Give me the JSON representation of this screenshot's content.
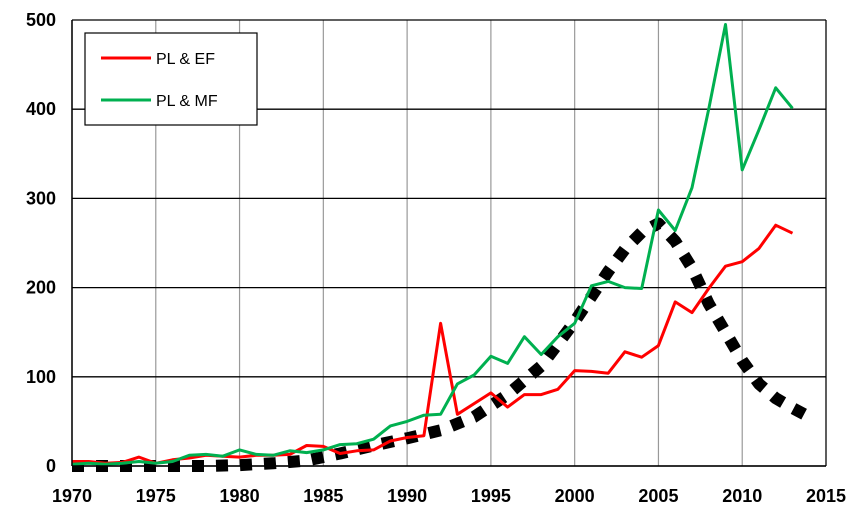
{
  "chart_data": {
    "type": "line",
    "xlim": [
      1970,
      2015
    ],
    "ylim": [
      0,
      500
    ],
    "x_ticks": [
      1970,
      1975,
      1980,
      1985,
      1990,
      1995,
      2000,
      2005,
      2010,
      2015
    ],
    "y_ticks": [
      0,
      100,
      200,
      300,
      400,
      500
    ],
    "grid": true,
    "legend_position": "top-left",
    "series": [
      {
        "name": "PL & EF",
        "color": "#ff0000",
        "style": "solid",
        "x": [
          1970,
          1971,
          1972,
          1973,
          1974,
          1975,
          1976,
          1977,
          1978,
          1979,
          1980,
          1981,
          1982,
          1983,
          1984,
          1985,
          1986,
          1987,
          1988,
          1989,
          1990,
          1991,
          1992,
          1993,
          1994,
          1995,
          1996,
          1997,
          1998,
          1999,
          2000,
          2001,
          2002,
          2003,
          2004,
          2005,
          2006,
          2007,
          2008,
          2009,
          2010,
          2011,
          2012,
          2013
        ],
        "y": [
          5,
          5,
          3,
          4,
          10,
          3,
          7,
          9,
          12,
          11,
          10,
          12,
          12,
          13,
          23,
          22,
          14,
          17,
          18,
          28,
          32,
          34,
          160,
          58,
          70,
          82,
          66,
          80,
          80,
          86,
          107,
          106,
          104,
          128,
          122,
          135,
          184,
          172,
          199,
          224,
          229,
          244,
          270,
          261
        ]
      },
      {
        "name": "PL & MF",
        "color": "#00b050",
        "style": "solid",
        "x": [
          1970,
          1971,
          1972,
          1973,
          1974,
          1975,
          1976,
          1977,
          1978,
          1979,
          1980,
          1981,
          1982,
          1983,
          1984,
          1985,
          1986,
          1987,
          1988,
          1989,
          1990,
          1991,
          1992,
          1993,
          1994,
          1995,
          1996,
          1997,
          1998,
          1999,
          2000,
          2001,
          2002,
          2003,
          2004,
          2005,
          2006,
          2007,
          2008,
          2009,
          2010,
          2011,
          2012,
          2013
        ],
        "y": [
          2,
          3,
          2,
          3,
          5,
          3,
          5,
          12,
          13,
          11,
          18,
          13,
          12,
          17,
          15,
          18,
          24,
          25,
          30,
          45,
          50,
          57,
          58,
          92,
          102,
          123,
          115,
          145,
          125,
          145,
          160,
          202,
          207,
          200,
          199,
          287,
          264,
          312,
          400,
          495,
          332,
          377,
          424,
          401
        ]
      },
      {
        "name": "",
        "color": "#000000",
        "style": "dotted",
        "x": [
          1970,
          1972,
          1974,
          1976,
          1978,
          1980,
          1982,
          1984,
          1986,
          1988,
          1990,
          1992,
          1994,
          1996,
          1998,
          2000,
          2002,
          2003,
          2004,
          2005,
          2006,
          2007,
          2008,
          2009,
          2010,
          2011,
          2012,
          2013,
          2014
        ],
        "y": [
          0,
          0,
          0,
          0,
          0,
          1,
          3,
          6,
          14,
          23,
          31,
          40,
          55,
          80,
          112,
          162,
          218,
          243,
          262,
          272,
          252,
          222,
          182,
          150,
          118,
          92,
          76,
          65,
          55
        ]
      }
    ]
  }
}
